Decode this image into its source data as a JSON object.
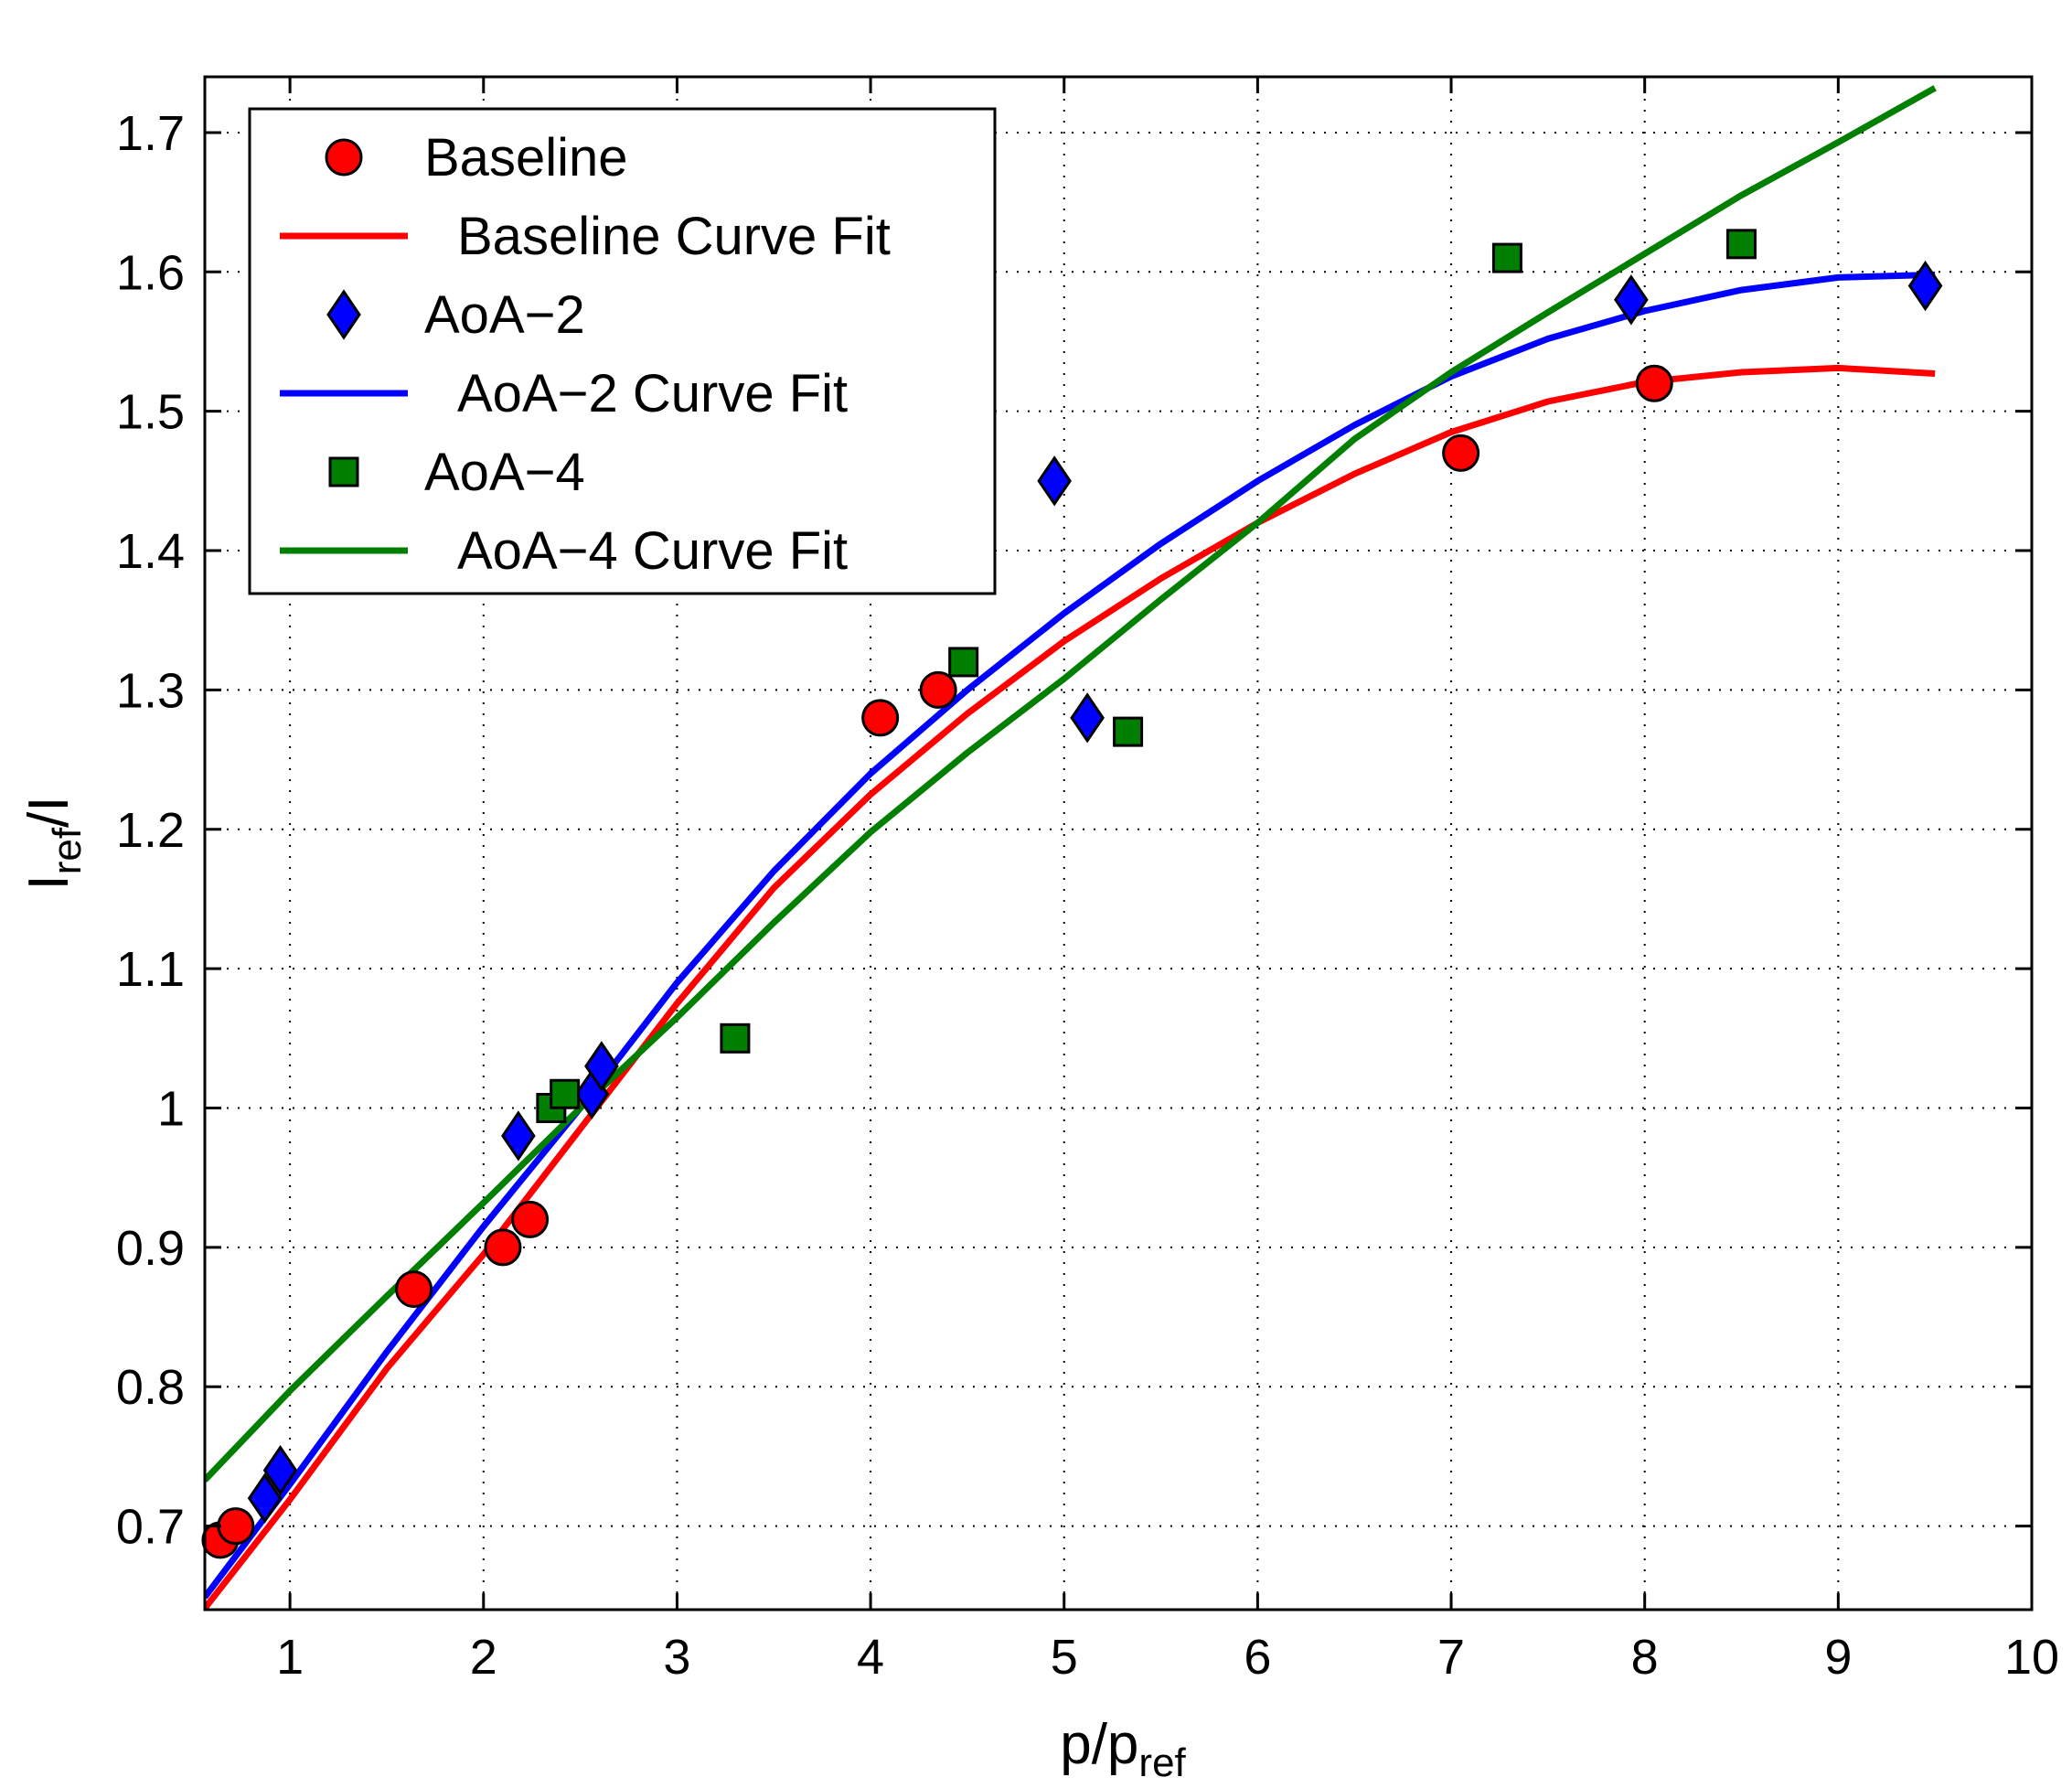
{
  "chart_data": {
    "type": "scatter",
    "title": "",
    "xlabel": {
      "main": "p/p",
      "sub": "ref"
    },
    "ylabel": {
      "pre": "I",
      "sub": "ref",
      "post": "/I"
    },
    "xlim": [
      0.56,
      10
    ],
    "ylim": [
      0.64,
      1.74
    ],
    "xticks": [
      1,
      2,
      3,
      4,
      5,
      6,
      7,
      8,
      9,
      10
    ],
    "yticks": [
      0.7,
      0.8,
      0.9,
      1,
      1.1,
      1.2,
      1.3,
      1.4,
      1.5,
      1.6,
      1.7
    ],
    "xtick_labels": [
      "1",
      "2",
      "3",
      "4",
      "5",
      "6",
      "7",
      "8",
      "9",
      "10"
    ],
    "ytick_labels": [
      "0.7",
      "0.8",
      "0.9",
      "1",
      "1.1",
      "1.2",
      "1.3",
      "1.4",
      "1.5",
      "1.6",
      "1.7"
    ],
    "grid": true,
    "legend_position": "top-left",
    "series": [
      {
        "name": "Baseline",
        "kind": "markers",
        "marker": "circle",
        "color": "#ff0000",
        "points": [
          [
            0.64,
            0.69
          ],
          [
            0.72,
            0.7
          ],
          [
            1.64,
            0.87
          ],
          [
            2.1,
            0.9
          ],
          [
            2.24,
            0.92
          ],
          [
            4.05,
            1.28
          ],
          [
            4.35,
            1.3
          ],
          [
            7.05,
            1.47
          ],
          [
            8.05,
            1.52
          ]
        ]
      },
      {
        "name": "Baseline Curve Fit",
        "kind": "line",
        "color": "#ff0000",
        "points": [
          [
            0.56,
            0.641
          ],
          [
            1.0,
            0.719
          ],
          [
            1.5,
            0.813
          ],
          [
            2.0,
            0.895
          ],
          [
            2.5,
            0.985
          ],
          [
            3.0,
            1.075
          ],
          [
            3.5,
            1.158
          ],
          [
            4.0,
            1.225
          ],
          [
            4.5,
            1.283
          ],
          [
            5.0,
            1.335
          ],
          [
            5.5,
            1.38
          ],
          [
            6.0,
            1.42
          ],
          [
            6.5,
            1.455
          ],
          [
            7.0,
            1.485
          ],
          [
            7.5,
            1.507
          ],
          [
            8.0,
            1.521
          ],
          [
            8.5,
            1.528
          ],
          [
            9.0,
            1.531
          ],
          [
            9.5,
            1.527
          ]
        ]
      },
      {
        "name": "AoA−2",
        "kind": "markers",
        "marker": "diamond",
        "color": "#0000ff",
        "points": [
          [
            0.87,
            0.72
          ],
          [
            0.95,
            0.74
          ],
          [
            2.18,
            0.98
          ],
          [
            2.56,
            1.01
          ],
          [
            2.61,
            1.03
          ],
          [
            4.95,
            1.45
          ],
          [
            5.12,
            1.28
          ],
          [
            7.93,
            1.58
          ],
          [
            9.45,
            1.59
          ]
        ]
      },
      {
        "name": "AoA−2 Curve Fit",
        "kind": "line",
        "color": "#0000ff",
        "points": [
          [
            0.56,
            0.649
          ],
          [
            1.0,
            0.73
          ],
          [
            1.5,
            0.825
          ],
          [
            2.0,
            0.915
          ],
          [
            2.5,
            1.0
          ],
          [
            3.0,
            1.09
          ],
          [
            3.5,
            1.17
          ],
          [
            4.0,
            1.24
          ],
          [
            4.5,
            1.3
          ],
          [
            5.0,
            1.355
          ],
          [
            5.5,
            1.405
          ],
          [
            6.0,
            1.45
          ],
          [
            6.5,
            1.49
          ],
          [
            7.0,
            1.525
          ],
          [
            7.5,
            1.552
          ],
          [
            8.0,
            1.572
          ],
          [
            8.5,
            1.587
          ],
          [
            9.0,
            1.596
          ],
          [
            9.5,
            1.598
          ]
        ]
      },
      {
        "name": "AoA−4",
        "kind": "markers",
        "marker": "square",
        "color": "#007f00",
        "points": [
          [
            2.35,
            1.0
          ],
          [
            2.42,
            1.01
          ],
          [
            3.3,
            1.05
          ],
          [
            4.48,
            1.32
          ],
          [
            5.33,
            1.27
          ],
          [
            7.29,
            1.61
          ],
          [
            8.5,
            1.62
          ]
        ]
      },
      {
        "name": "AoA−4 Curve Fit",
        "kind": "line",
        "color": "#007f00",
        "points": [
          [
            0.56,
            0.733
          ],
          [
            1.0,
            0.797
          ],
          [
            1.5,
            0.865
          ],
          [
            2.0,
            0.932
          ],
          [
            2.5,
            1.0
          ],
          [
            3.0,
            1.065
          ],
          [
            3.5,
            1.133
          ],
          [
            4.0,
            1.198
          ],
          [
            4.5,
            1.255
          ],
          [
            5.0,
            1.308
          ],
          [
            5.5,
            1.365
          ],
          [
            6.0,
            1.42
          ],
          [
            6.5,
            1.48
          ],
          [
            7.0,
            1.528
          ],
          [
            7.5,
            1.571
          ],
          [
            8.0,
            1.613
          ],
          [
            8.5,
            1.655
          ],
          [
            9.0,
            1.693
          ],
          [
            9.5,
            1.732
          ]
        ]
      }
    ],
    "legend_order": [
      0,
      1,
      2,
      3,
      4,
      5
    ]
  }
}
